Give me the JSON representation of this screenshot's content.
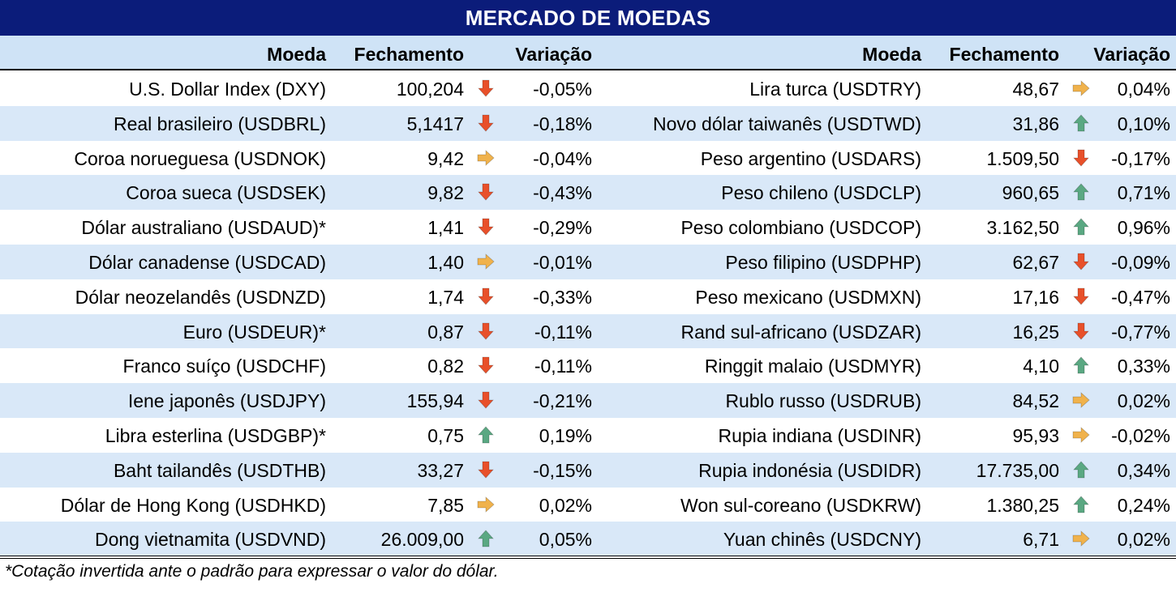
{
  "title": "MERCADO DE MOEDAS",
  "headers": {
    "left": {
      "currency": "Moeda",
      "close": "Fechamento",
      "change": "Variação"
    },
    "right": {
      "currency": "Moeda",
      "close": "Fechamento",
      "change": "Variação"
    }
  },
  "colors": {
    "header_bg": "#0b1c7a",
    "row_alt": "#d9e8f8",
    "down": "#e8502a",
    "up": "#5aa882",
    "flat": "#f0b24c"
  },
  "left_rows": [
    {
      "name": "U.S. Dollar Index (DXY)",
      "close": "100,204",
      "trend": "down",
      "change": "-0,05%"
    },
    {
      "name": "Real brasileiro (USDBRL)",
      "close": "5,1417",
      "trend": "down",
      "change": "-0,18%"
    },
    {
      "name": "Coroa norueguesa (USDNOK)",
      "close": "9,42",
      "trend": "flat",
      "change": "-0,04%"
    },
    {
      "name": "Coroa sueca (USDSEK)",
      "close": "9,82",
      "trend": "down",
      "change": "-0,43%"
    },
    {
      "name": "Dólar australiano (USDAUD)*",
      "close": "1,41",
      "trend": "down",
      "change": "-0,29%"
    },
    {
      "name": "Dólar canadense (USDCAD)",
      "close": "1,40",
      "trend": "flat",
      "change": "-0,01%"
    },
    {
      "name": "Dólar neozelandês (USDNZD)",
      "close": "1,74",
      "trend": "down",
      "change": "-0,33%"
    },
    {
      "name": "Euro (USDEUR)*",
      "close": "0,87",
      "trend": "down",
      "change": "-0,11%"
    },
    {
      "name": "Franco suíço (USDCHF)",
      "close": "0,82",
      "trend": "down",
      "change": "-0,11%"
    },
    {
      "name": "Iene japonês (USDJPY)",
      "close": "155,94",
      "trend": "down",
      "change": "-0,21%"
    },
    {
      "name": "Libra esterlina (USDGBP)*",
      "close": "0,75",
      "trend": "up",
      "change": "0,19%"
    },
    {
      "name": "Baht tailandês (USDTHB)",
      "close": "33,27",
      "trend": "down",
      "change": "-0,15%"
    },
    {
      "name": "Dólar de Hong Kong (USDHKD)",
      "close": "7,85",
      "trend": "flat",
      "change": "0,02%"
    },
    {
      "name": "Dong vietnamita (USDVND)",
      "close": "26.009,00",
      "trend": "up",
      "change": "0,05%"
    }
  ],
  "right_rows": [
    {
      "name": "Lira turca (USDTRY)",
      "close": "48,67",
      "trend": "flat",
      "change": "0,04%"
    },
    {
      "name": "Novo dólar taiwanês (USDTWD)",
      "close": "31,86",
      "trend": "up",
      "change": "0,10%"
    },
    {
      "name": "Peso argentino (USDARS)",
      "close": "1.509,50",
      "trend": "down",
      "change": "-0,17%"
    },
    {
      "name": "Peso chileno (USDCLP)",
      "close": "960,65",
      "trend": "up",
      "change": "0,71%"
    },
    {
      "name": "Peso colombiano (USDCOP)",
      "close": "3.162,50",
      "trend": "up",
      "change": "0,96%"
    },
    {
      "name": "Peso filipino (USDPHP)",
      "close": "62,67",
      "trend": "down",
      "change": "-0,09%"
    },
    {
      "name": "Peso mexicano (USDMXN)",
      "close": "17,16",
      "trend": "down",
      "change": "-0,47%"
    },
    {
      "name": "Rand sul-africano (USDZAR)",
      "close": "16,25",
      "trend": "down",
      "change": "-0,77%"
    },
    {
      "name": "Ringgit malaio (USDMYR)",
      "close": "4,10",
      "trend": "up",
      "change": "0,33%"
    },
    {
      "name": "Rublo russo (USDRUB)",
      "close": "84,52",
      "trend": "flat",
      "change": "0,02%"
    },
    {
      "name": "Rupia indiana (USDINR)",
      "close": "95,93",
      "trend": "flat",
      "change": "-0,02%"
    },
    {
      "name": "Rupia indonésia (USDIDR)",
      "close": "17.735,00",
      "trend": "up",
      "change": "0,34%"
    },
    {
      "name": "Won sul-coreano (USDKRW)",
      "close": "1.380,25",
      "trend": "up",
      "change": "0,24%"
    },
    {
      "name": "Yuan chinês (USDCNY)",
      "close": "6,71",
      "trend": "flat",
      "change": "0,02%"
    }
  ],
  "footnote": "*Cotação invertida ante o padrão para expressar o valor do dólar."
}
